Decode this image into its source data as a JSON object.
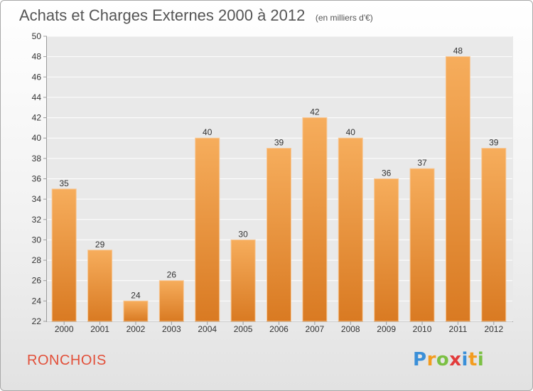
{
  "title": "Achats et Charges Externes 2000 à 2012",
  "subtitle": "(en milliers d'€)",
  "commune": "RONCHOIS",
  "logo": {
    "letters": [
      "P",
      "r",
      "o",
      "x",
      "i",
      "t",
      "i"
    ],
    "colors": [
      "#3a8fd8",
      "#f39c1f",
      "#7bc043",
      "#e23b3b",
      "#3a8fd8",
      "#f39c1f",
      "#7bc043"
    ]
  },
  "colors": {
    "bar_light": "#f6ad5c",
    "bar_dark": "#d97a22",
    "plot_bg": "#e9e9e9",
    "grid": "#ffffff"
  },
  "chart_data": {
    "type": "bar",
    "categories": [
      "2000",
      "2001",
      "2002",
      "2003",
      "2004",
      "2005",
      "2006",
      "2007",
      "2008",
      "2009",
      "2010",
      "2011",
      "2012"
    ],
    "values": [
      35,
      29,
      24,
      26,
      40,
      30,
      39,
      42,
      40,
      36,
      37,
      48,
      39
    ],
    "ylim": [
      22,
      50
    ],
    "yticks": [
      22,
      24,
      26,
      28,
      30,
      32,
      34,
      36,
      38,
      40,
      42,
      44,
      46,
      48,
      50
    ],
    "grid": true,
    "value_labels": true
  }
}
